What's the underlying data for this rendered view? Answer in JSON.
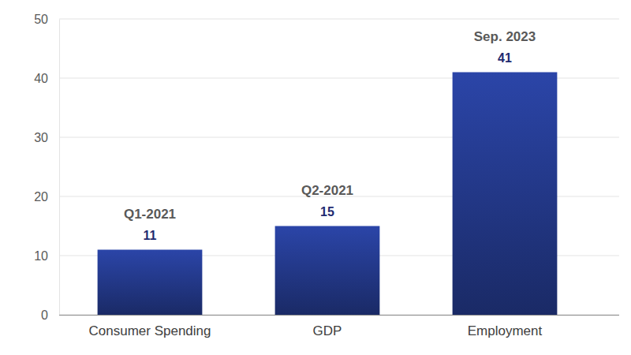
{
  "chart_data": {
    "type": "bar",
    "categories": [
      "Consumer Spending",
      "GDP",
      "Employment"
    ],
    "values": [
      11,
      15,
      41
    ],
    "annotations": [
      "Q1-2021",
      "Q2-2021",
      "Sep. 2023"
    ],
    "color": "#2b45a8",
    "ylim": [
      0,
      50
    ],
    "yticks": [
      0,
      10,
      20,
      30,
      40,
      50
    ],
    "grid": true,
    "data_labels": true
  }
}
